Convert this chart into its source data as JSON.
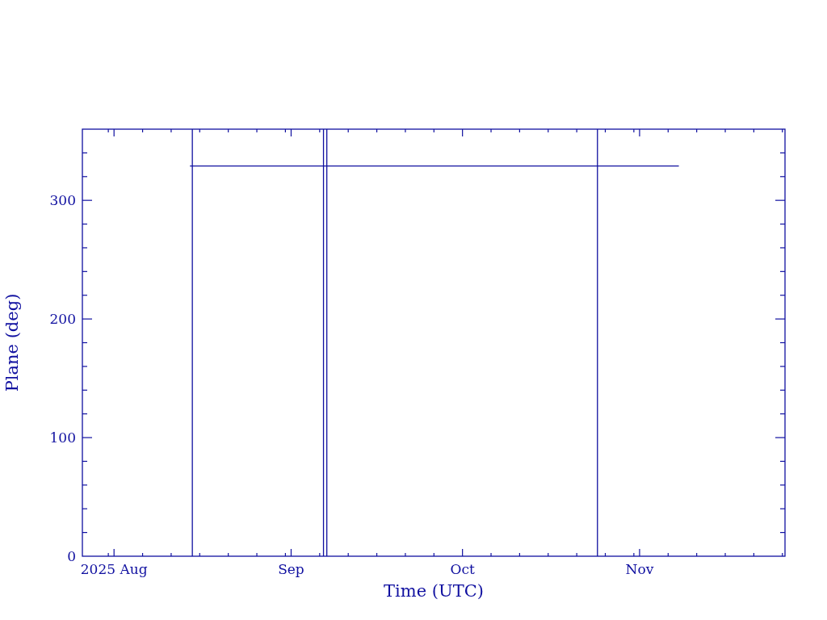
{
  "chart_data": {
    "type": "line",
    "xlabel": "Time (UTC)",
    "ylabel": "Plane (deg)",
    "xlim": [
      "2025-07-26T11:00",
      "2025-11-26T11:00"
    ],
    "xticks": [
      {
        "value": "2025-07-31",
        "label": null
      },
      {
        "value": "2025-08-01",
        "label": "2025 Aug"
      },
      {
        "value": "2025-08-06",
        "label": null
      },
      {
        "value": "2025-08-11",
        "label": null
      },
      {
        "value": "2025-08-16",
        "label": null
      },
      {
        "value": "2025-08-21",
        "label": null
      },
      {
        "value": "2025-08-26",
        "label": null
      },
      {
        "value": "2025-08-31",
        "label": null
      },
      {
        "value": "2025-09-01",
        "label": "Sep"
      },
      {
        "value": "2025-09-06",
        "label": null
      },
      {
        "value": "2025-09-11",
        "label": null
      },
      {
        "value": "2025-09-16",
        "label": null
      },
      {
        "value": "2025-09-21",
        "label": null
      },
      {
        "value": "2025-09-26",
        "label": null
      },
      {
        "value": "2025-10-01",
        "label": "Oct"
      },
      {
        "value": "2025-10-06",
        "label": null
      },
      {
        "value": "2025-10-11",
        "label": null
      },
      {
        "value": "2025-10-16",
        "label": null
      },
      {
        "value": "2025-10-21",
        "label": null
      },
      {
        "value": "2025-10-26",
        "label": null
      },
      {
        "value": "2025-10-31",
        "label": null
      },
      {
        "value": "2025-11-01",
        "label": "Nov"
      },
      {
        "value": "2025-11-06",
        "label": null
      },
      {
        "value": "2025-11-11",
        "label": null
      },
      {
        "value": "2025-11-16",
        "label": null
      },
      {
        "value": "2025-11-21",
        "label": null
      },
      {
        "value": "2025-11-26",
        "label": null
      }
    ],
    "ylim": [
      0,
      360
    ],
    "yticks": [
      0,
      {
        "value": 20,
        "label": null
      },
      {
        "value": 40,
        "label": null
      },
      {
        "value": 60,
        "label": null
      },
      {
        "value": 80,
        "label": null
      },
      100,
      {
        "value": 120,
        "label": null
      },
      {
        "value": 140,
        "label": null
      },
      {
        "value": 160,
        "label": null
      },
      {
        "value": 180,
        "label": null
      },
      200,
      {
        "value": 220,
        "label": null
      },
      {
        "value": 240,
        "label": null
      },
      {
        "value": 260,
        "label": null
      },
      {
        "value": 280,
        "label": null
      },
      300,
      {
        "value": 320,
        "label": null
      },
      {
        "value": 340,
        "label": null
      }
    ],
    "series": [
      {
        "color": "#1010a0",
        "x": [
          "2025-08-14T07:00",
          "2025-11-07T21:00"
        ],
        "values": [
          329,
          329
        ]
      }
    ],
    "ref_lines": [
      {
        "axis": "x",
        "value": "2025-08-14T17:00",
        "color": "#1010a0"
      },
      {
        "axis": "x",
        "value": "2025-09-06T16:00",
        "color": "#1010a0"
      },
      {
        "axis": "x",
        "value": "2025-09-07T06:00",
        "color": "#1010a0"
      },
      {
        "axis": "x",
        "value": "2025-10-24T15:00",
        "color": "#1010a0"
      }
    ]
  }
}
